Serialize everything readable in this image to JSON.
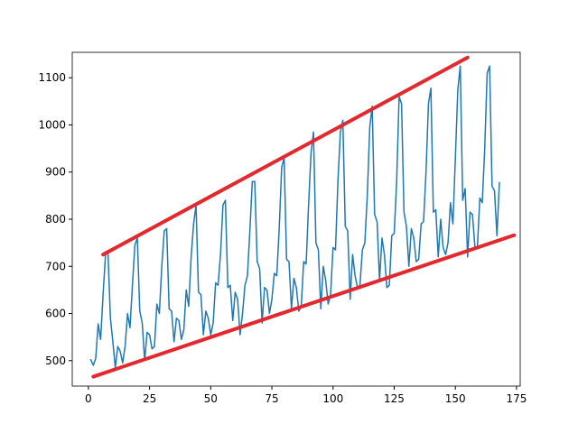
{
  "chart_data": {
    "type": "line",
    "xlim": [
      -6.6,
      176.5
    ],
    "ylim": [
      446,
      1154
    ],
    "xticks": [
      0,
      25,
      50,
      75,
      100,
      125,
      150,
      175
    ],
    "yticks": [
      500,
      600,
      700,
      800,
      900,
      1000,
      1100
    ],
    "grid": false,
    "series": [
      {
        "color": "#1f77b4",
        "width": 1.5,
        "x": [
          1,
          2,
          3,
          4,
          5,
          6,
          7,
          8,
          9,
          10,
          11,
          12,
          13,
          14,
          15,
          16,
          17,
          18,
          19,
          20,
          21,
          22,
          23,
          24,
          25,
          26,
          27,
          28,
          29,
          30,
          31,
          32,
          33,
          34,
          35,
          36,
          37,
          38,
          39,
          40,
          41,
          42,
          43,
          44,
          45,
          46,
          47,
          48,
          49,
          50,
          51,
          52,
          53,
          54,
          55,
          56,
          57,
          58,
          59,
          60,
          61,
          62,
          63,
          64,
          65,
          66,
          67,
          68,
          69,
          70,
          71,
          72,
          73,
          74,
          75,
          76,
          77,
          78,
          79,
          80,
          81,
          82,
          83,
          84,
          85,
          86,
          87,
          88,
          89,
          90,
          91,
          92,
          93,
          94,
          95,
          96,
          97,
          98,
          99,
          100,
          101,
          102,
          103,
          104,
          105,
          106,
          107,
          108,
          109,
          110,
          111,
          112,
          113,
          114,
          115,
          116,
          117,
          118,
          119,
          120,
          121,
          122,
          123,
          124,
          125,
          126,
          127,
          128,
          129,
          130,
          131,
          132,
          133,
          134,
          135,
          136,
          137,
          138,
          139,
          140,
          141,
          142,
          143,
          144,
          145,
          146,
          147,
          148,
          149,
          150,
          151,
          152,
          153,
          154,
          155,
          156,
          157,
          158,
          159,
          160,
          161,
          162,
          163,
          164,
          165,
          166,
          167,
          168
        ],
        "values": [
          502,
          490,
          505,
          578,
          545,
          640,
          725,
          730,
          590,
          540,
          485,
          530,
          520,
          495,
          530,
          600,
          570,
          660,
          745,
          760,
          605,
          580,
          500,
          560,
          555,
          525,
          530,
          620,
          600,
          700,
          775,
          780,
          610,
          605,
          540,
          590,
          585,
          545,
          565,
          650,
          615,
          720,
          790,
          830,
          645,
          640,
          555,
          605,
          590,
          555,
          580,
          665,
          660,
          725,
          830,
          840,
          655,
          660,
          585,
          645,
          630,
          555,
          600,
          660,
          680,
          775,
          880,
          880,
          710,
          695,
          580,
          655,
          650,
          600,
          630,
          685,
          680,
          780,
          910,
          930,
          715,
          710,
          610,
          675,
          655,
          605,
          615,
          710,
          705,
          830,
          940,
          985,
          750,
          735,
          610,
          700,
          670,
          620,
          640,
          740,
          735,
          880,
          985,
          1010,
          785,
          775,
          630,
          725,
          680,
          655,
          660,
          735,
          750,
          850,
          995,
          1040,
          810,
          795,
          670,
          760,
          725,
          655,
          660,
          765,
          770,
          880,
          1060,
          1045,
          815,
          785,
          700,
          780,
          760,
          710,
          715,
          790,
          795,
          900,
          1045,
          1078,
          815,
          820,
          720,
          800,
          740,
          725,
          750,
          835,
          790,
          930,
          1075,
          1125,
          840,
          865,
          720,
          815,
          810,
          740,
          740,
          845,
          835,
          950,
          1110,
          1125,
          870,
          860,
          765,
          878
        ]
      },
      {
        "color": "#e3282e",
        "width": 4,
        "x": [
          6,
          155
        ],
        "values": [
          725,
          1143
        ]
      },
      {
        "color": "#e3282e",
        "width": 4,
        "x": [
          2,
          174
        ],
        "values": [
          466,
          766
        ]
      }
    ]
  }
}
